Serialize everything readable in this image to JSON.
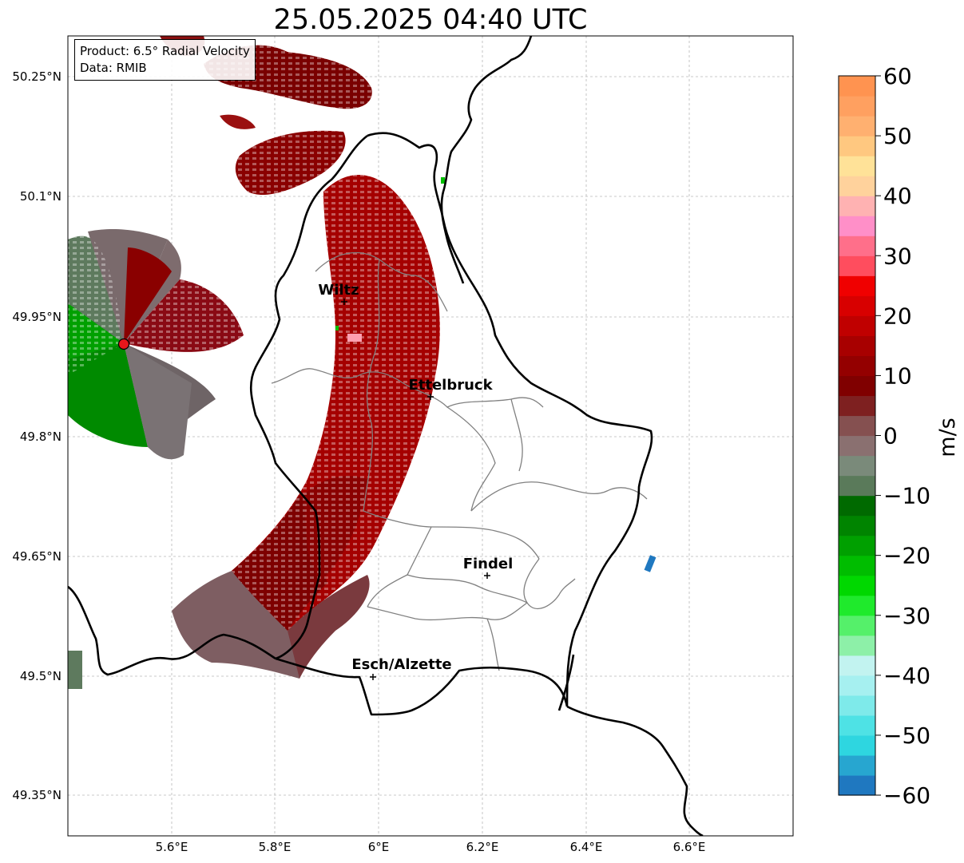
{
  "title": "25.05.2025 04:40 UTC",
  "info_box": {
    "product": "Product: 6.5° Radial Velocity",
    "data": "Data: RMIB"
  },
  "map": {
    "lat_ticks": [
      "50.25°N",
      "50.1°N",
      "49.95°N",
      "49.8°N",
      "49.65°N",
      "49.5°N",
      "49.35°N"
    ],
    "lon_ticks": [
      "5.6°E",
      "5.8°E",
      "6°E",
      "6.2°E",
      "6.4°E",
      "6.6°E"
    ],
    "cities": [
      {
        "name": "Wiltz"
      },
      {
        "name": "Ettelbruck"
      },
      {
        "name": "Findel"
      },
      {
        "name": "Esch/Alzette"
      }
    ],
    "radar_site_color": "#e8161b",
    "border_color": "#000000",
    "canton_color": "#808080"
  },
  "colorbar": {
    "unit": "m/s",
    "ticks": [
      "60",
      "50",
      "40",
      "30",
      "20",
      "10",
      "0",
      "−10",
      "−20",
      "−30",
      "−40",
      "−50",
      "−60"
    ],
    "colors": [
      "#1f78c0",
      "#27a6d0",
      "#2ed6e0",
      "#4ee2e5",
      "#7eeaea",
      "#a6f0f0",
      "#c2f3f0",
      "#8df0a8",
      "#55f06a",
      "#1fea2c",
      "#00d800",
      "#00bd00",
      "#00a000",
      "#008400",
      "#006a00",
      "#5a7a5a",
      "#7a8a7a",
      "#8a7070",
      "#855050",
      "#7e2020",
      "#800000",
      "#940000",
      "#a80000",
      "#c00000",
      "#d80000",
      "#f00000",
      "#ff4d5e",
      "#ff6f8a",
      "#ff8fc8",
      "#ffb2b2",
      "#ffd29c",
      "#ffe298",
      "#ffc880",
      "#ffb070",
      "#ffa060",
      "#ff9350"
    ]
  },
  "colors": {
    "velocity_inbound": "#008a00",
    "velocity_neutral": "#7e7070",
    "velocity_outbound": "#a00000",
    "velocity_outbound_dark": "#7a0000"
  }
}
